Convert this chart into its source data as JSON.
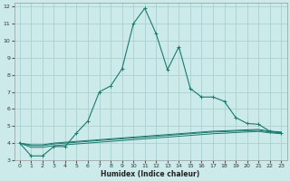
{
  "xlabel": "Humidex (Indice chaleur)",
  "bg_color": "#cceaea",
  "grid_color": "#aad0d0",
  "line_color": "#1a7a6e",
  "xlim": [
    -0.5,
    23.5
  ],
  "ylim": [
    3,
    12.2
  ],
  "xticks": [
    0,
    1,
    2,
    3,
    4,
    5,
    6,
    7,
    8,
    9,
    10,
    11,
    12,
    13,
    14,
    15,
    16,
    17,
    18,
    19,
    20,
    21,
    22,
    23
  ],
  "yticks": [
    3,
    4,
    5,
    6,
    7,
    8,
    9,
    10,
    11,
    12
  ],
  "main_x": [
    0,
    1,
    2,
    3,
    4,
    5,
    6,
    7,
    8,
    9,
    10,
    11,
    12,
    13,
    14,
    15,
    16,
    17,
    18,
    19,
    20,
    21,
    22,
    23
  ],
  "main_y": [
    4.0,
    3.25,
    3.25,
    3.8,
    3.8,
    4.6,
    5.3,
    7.0,
    7.35,
    8.35,
    11.0,
    11.9,
    10.4,
    8.3,
    9.65,
    7.2,
    6.7,
    6.7,
    6.45,
    5.5,
    5.15,
    5.1,
    4.7,
    4.6
  ],
  "flat1_x": [
    0,
    1,
    2,
    3,
    4,
    5,
    6,
    7,
    8,
    9,
    10,
    11,
    12,
    13,
    14,
    15,
    16,
    17,
    18,
    19,
    20,
    21,
    22,
    23
  ],
  "flat1_y": [
    4.0,
    3.9,
    3.9,
    4.0,
    4.05,
    4.1,
    4.15,
    4.2,
    4.25,
    4.3,
    4.35,
    4.4,
    4.45,
    4.5,
    4.55,
    4.6,
    4.65,
    4.7,
    4.72,
    4.75,
    4.78,
    4.8,
    4.7,
    4.65
  ],
  "flat2_x": [
    0,
    1,
    2,
    3,
    4,
    5,
    6,
    7,
    8,
    9,
    10,
    11,
    12,
    13,
    14,
    15,
    16,
    17,
    18,
    19,
    20,
    21,
    22,
    23
  ],
  "flat2_y": [
    4.0,
    3.85,
    3.85,
    3.95,
    4.0,
    4.05,
    4.1,
    4.15,
    4.2,
    4.25,
    4.3,
    4.35,
    4.4,
    4.45,
    4.5,
    4.55,
    4.6,
    4.65,
    4.67,
    4.7,
    4.72,
    4.75,
    4.65,
    4.6
  ],
  "flat3_x": [
    0,
    1,
    2,
    3,
    4,
    5,
    6,
    7,
    8,
    9,
    10,
    11,
    12,
    13,
    14,
    15,
    16,
    17,
    18,
    19,
    20,
    21,
    22,
    23
  ],
  "flat3_y": [
    4.0,
    3.75,
    3.75,
    3.85,
    3.9,
    3.95,
    4.0,
    4.05,
    4.1,
    4.15,
    4.2,
    4.25,
    4.3,
    4.35,
    4.4,
    4.45,
    4.5,
    4.55,
    4.58,
    4.62,
    4.65,
    4.68,
    4.6,
    4.55
  ]
}
